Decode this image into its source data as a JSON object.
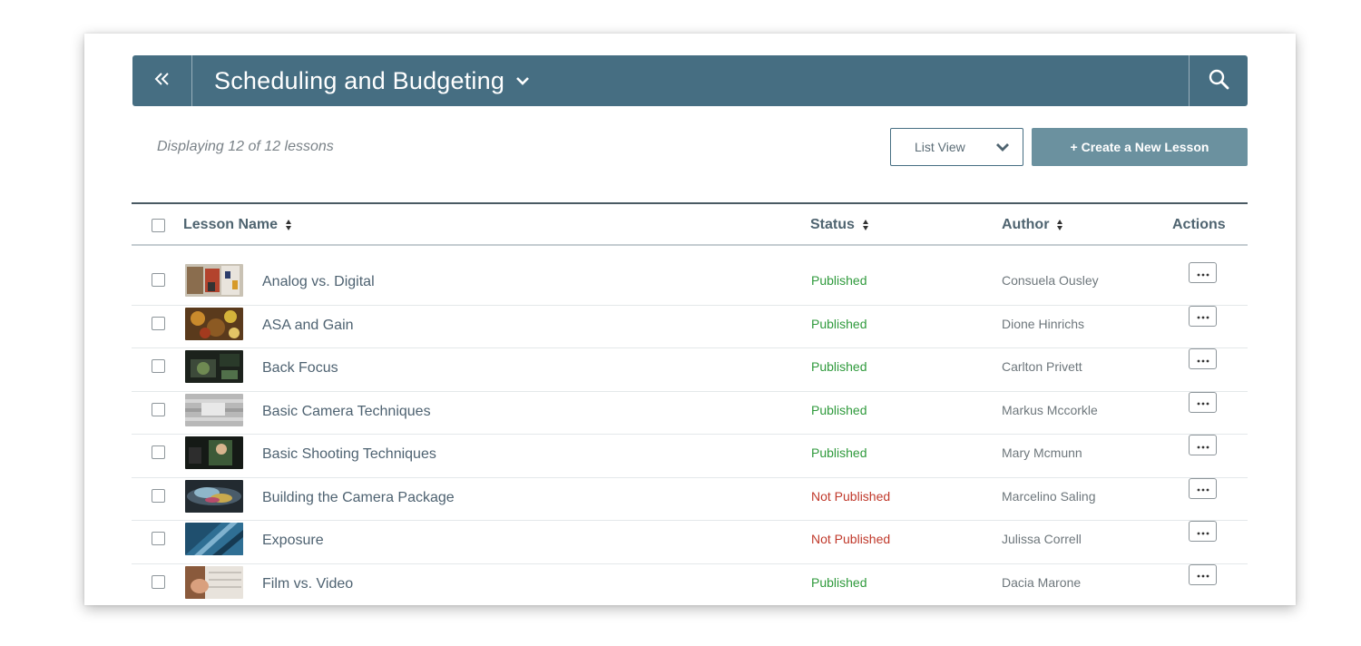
{
  "header": {
    "back_icon": "double-chevron-left-icon",
    "title": "Scheduling and Budgeting",
    "title_dropdown_icon": "chevron-down-icon",
    "search_icon": "search-icon",
    "bar_color": "#466e82"
  },
  "toolbar": {
    "count_text": "Displaying 12 of 12 lessons",
    "view_select": {
      "value": "List View",
      "icon": "chevron-down-icon"
    },
    "create_button": "+ Create a New Lesson",
    "create_button_color": "#6b919f"
  },
  "table": {
    "columns": {
      "lesson_name": "Lesson Name",
      "status": "Status",
      "author": "Author",
      "actions": "Actions"
    },
    "status_colors": {
      "published": "#2f9a3c",
      "not_published": "#c0392b"
    },
    "rows": [
      {
        "name": "Analog vs. Digital",
        "status": "Published",
        "author": "Consuela Ousley",
        "thumb": "analog"
      },
      {
        "name": "ASA and Gain",
        "status": "Published",
        "author": "Dione Hinrichs",
        "thumb": "asa"
      },
      {
        "name": "Back Focus",
        "status": "Published",
        "author": "Carlton Privett",
        "thumb": "back"
      },
      {
        "name": "Basic Camera Techniques",
        "status": "Published",
        "author": "Markus Mccorkle",
        "thumb": "camera"
      },
      {
        "name": "Basic Shooting Techniques",
        "status": "Published",
        "author": "Mary Mcmunn",
        "thumb": "shooting"
      },
      {
        "name": "Building the Camera Package",
        "status": "Not Published",
        "author": "Marcelino Saling",
        "thumb": "package"
      },
      {
        "name": "Exposure",
        "status": "Not Published",
        "author": "Julissa Correll",
        "thumb": "exposure"
      },
      {
        "name": "Film vs. Video",
        "status": "Published",
        "author": "Dacia Marone",
        "thumb": "film"
      }
    ],
    "action_icon": "more-horizontal-icon"
  }
}
